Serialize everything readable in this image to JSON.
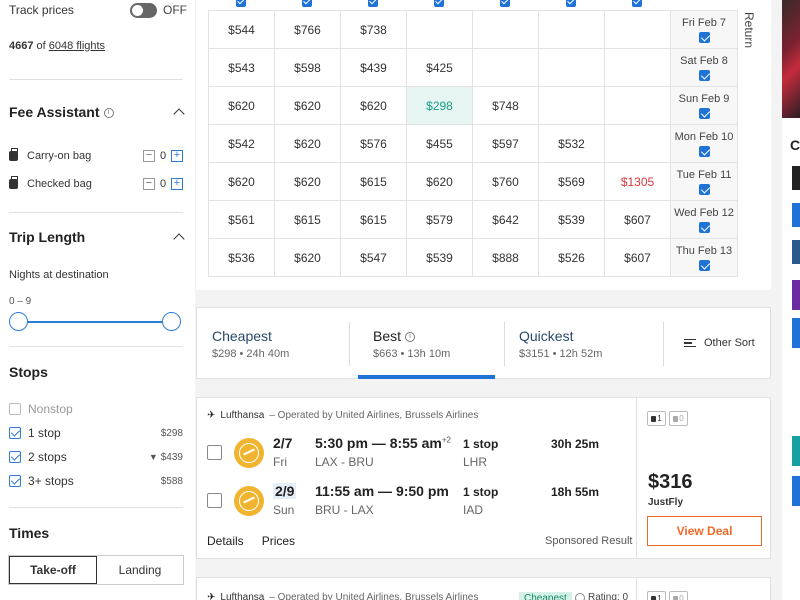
{
  "sidebar": {
    "track_prices_label": "Track prices",
    "track_prices_state": "OFF",
    "flight_count_shown": "4667",
    "flight_count_of": "of",
    "flight_count_total": "6048 flights",
    "fee_assistant": {
      "title": "Fee Assistant",
      "carry_on_label": "Carry-on bag",
      "carry_on_value": "0",
      "checked_label": "Checked bag",
      "checked_value": "0"
    },
    "trip_length": {
      "title": "Trip Length",
      "nights_label": "Nights at destination",
      "range_text": "0 – 9"
    },
    "stops": {
      "title": "Stops",
      "items": [
        {
          "label": "Nonstop",
          "price": "",
          "checked": false,
          "disabled": true
        },
        {
          "label": "1 stop",
          "price": "$298",
          "checked": true,
          "disabled": false
        },
        {
          "label": "2 stops",
          "price": "$439",
          "checked": true,
          "disabled": false
        },
        {
          "label": "3+ stops",
          "price": "$588",
          "checked": true,
          "disabled": false
        }
      ]
    },
    "times": {
      "title": "Times",
      "tab_takeoff": "Take-off",
      "tab_landing": "Landing"
    }
  },
  "matrix": {
    "return_label": "Return",
    "rows": [
      {
        "date": "Fri Feb 7",
        "cells": [
          "$544",
          "$766",
          "$738",
          "",
          "",
          "",
          ""
        ]
      },
      {
        "date": "Sat Feb 8",
        "cells": [
          "$543",
          "$598",
          "$439",
          "$425",
          "",
          "",
          ""
        ]
      },
      {
        "date": "Sun Feb 9",
        "cells": [
          "$620",
          "$620",
          "$620",
          "$298",
          "$748",
          "",
          ""
        ]
      },
      {
        "date": "Mon Feb 10",
        "cells": [
          "$542",
          "$620",
          "$576",
          "$455",
          "$597",
          "$532",
          ""
        ]
      },
      {
        "date": "Tue Feb 11",
        "cells": [
          "$620",
          "$620",
          "$615",
          "$620",
          "$760",
          "$569",
          "$1305"
        ]
      },
      {
        "date": "Wed Feb 12",
        "cells": [
          "$561",
          "$615",
          "$615",
          "$579",
          "$642",
          "$539",
          "$607"
        ]
      },
      {
        "date": "Thu Feb 13",
        "cells": [
          "$536",
          "$620",
          "$547",
          "$539",
          "$888",
          "$526",
          "$607"
        ]
      }
    ],
    "colors": {
      "highlight": "#16a085",
      "expensive": "#d9363e"
    }
  },
  "sort_tabs": {
    "cheapest": {
      "label": "Cheapest",
      "sub": "$298 • 24h 40m"
    },
    "best": {
      "label": "Best",
      "sub": "$663 • 13h 10m"
    },
    "quickest": {
      "label": "Quickest",
      "sub": "$3151 • 12h 52m"
    },
    "other": "Other Sort"
  },
  "result1": {
    "airline": "Lufthansa",
    "operated": "– Operated by United Airlines, Brussels Airlines",
    "legs": [
      {
        "date": "2/7",
        "dow": "Fri",
        "time": "5:30 pm — 8:55 am",
        "plus_days": "+2",
        "route": "LAX - BRU",
        "stops": "1 stop",
        "via": "LHR",
        "duration": "30h 25m"
      },
      {
        "date": "2/9",
        "dow": "Sun",
        "time": "11:55 am — 9:50 pm",
        "plus_days": "",
        "route": "BRU - LAX",
        "stops": "1 stop",
        "via": "IAD",
        "duration": "18h 55m"
      }
    ],
    "details_link": "Details",
    "prices_link": "Prices",
    "sponsored": "Sponsored Result",
    "carry_on_badge": "1",
    "checked_badge": "0",
    "price": "$316",
    "provider": "JustFly",
    "deal_button": "View Deal",
    "accent": "#ec6a2a"
  },
  "result2": {
    "airline": "Lufthansa",
    "operated": "– Operated by United Airlines, Brussels Airlines",
    "tag": "Cheapest",
    "rating": "Rating: 0",
    "carry_on_badge": "1",
    "checked_badge": "0"
  },
  "right_strip": {
    "letter": "C"
  }
}
